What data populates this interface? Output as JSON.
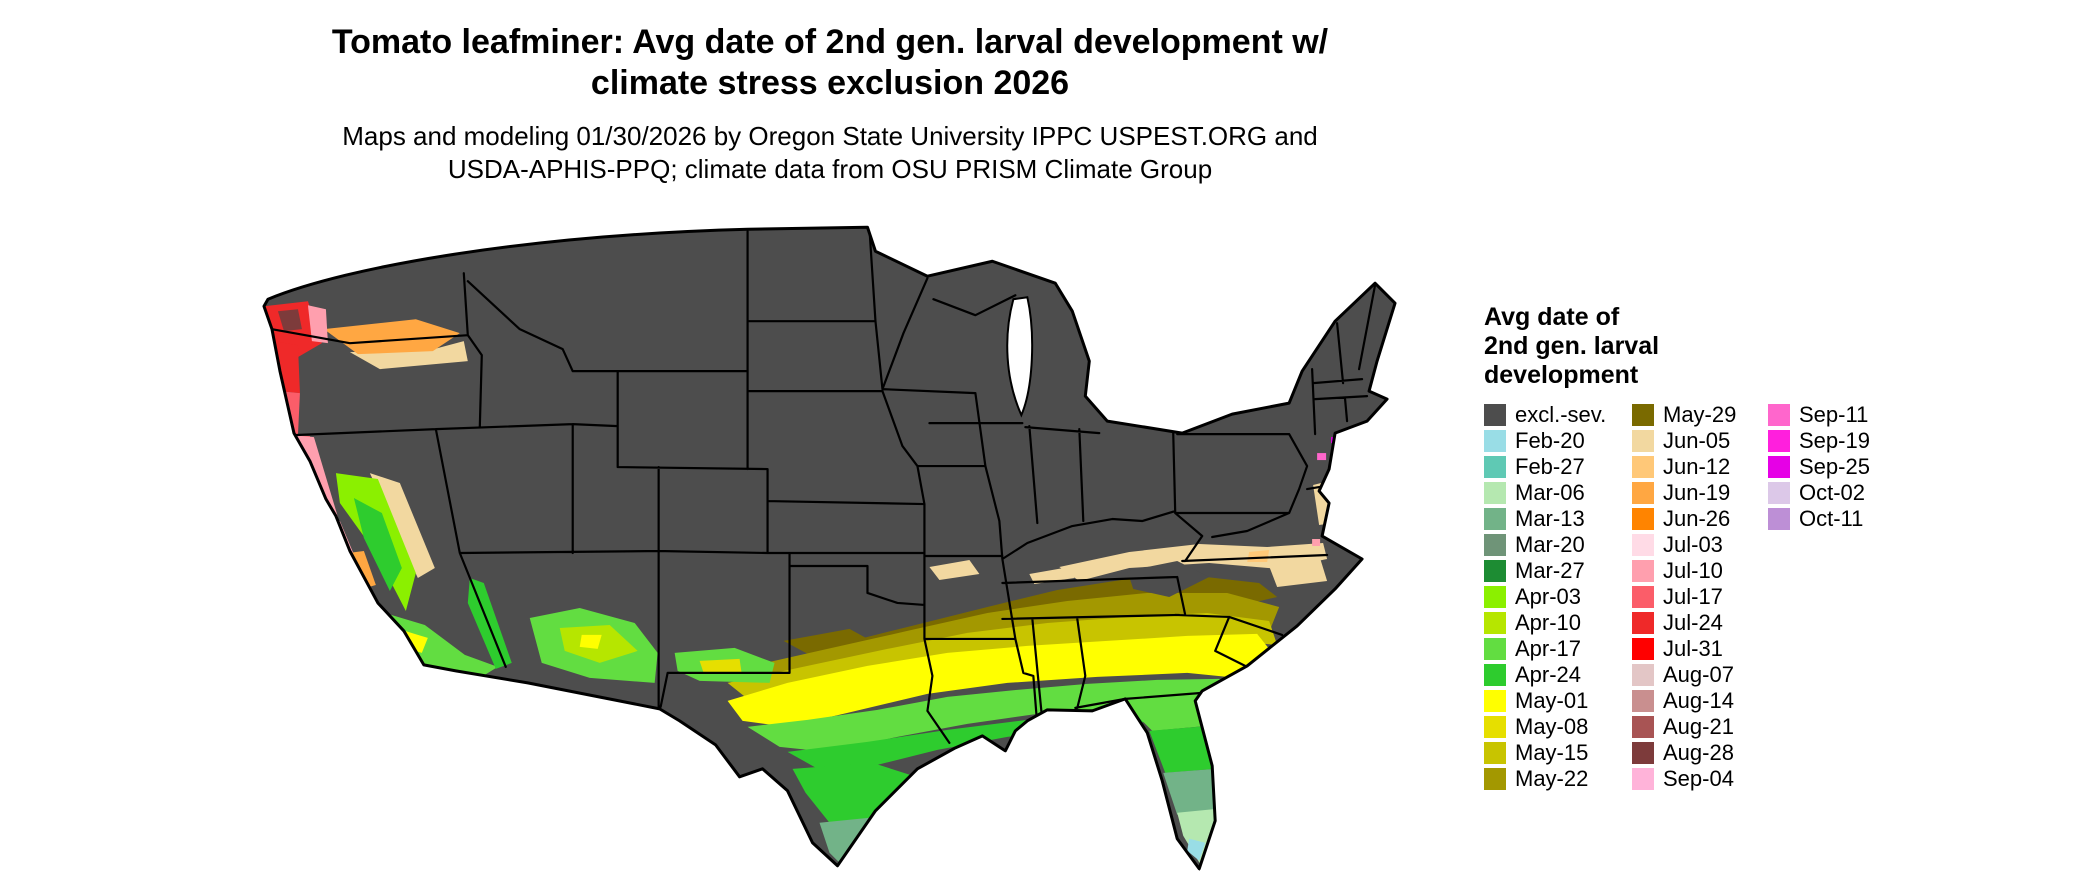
{
  "header": {
    "title_line1": "Tomato leafminer: Avg date of 2nd gen. larval development w/",
    "title_line2": "climate stress exclusion 2026",
    "subtitle_line1": "Maps and modeling 01/30/2026 by Oregon State University IPPC USPEST.ORG and",
    "subtitle_line2": "USDA-APHIS-PPQ; climate data from OSU PRISM Climate Group"
  },
  "legend": {
    "title_lines": [
      "Avg date of",
      "2nd gen. larval",
      "development"
    ],
    "columns": [
      {
        "entries": [
          {
            "label": "excl.-sev.",
            "color": "#4d4d4d"
          },
          {
            "label": "Feb-20",
            "color": "#99dde6"
          },
          {
            "label": "Feb-27",
            "color": "#5fc9b4"
          },
          {
            "label": "Mar-06",
            "color": "#b5e8b0"
          },
          {
            "label": "Mar-13",
            "color": "#72b388"
          },
          {
            "label": "Mar-20",
            "color": "#6f9478"
          },
          {
            "label": "Mar-27",
            "color": "#1d8c33"
          },
          {
            "label": "Apr-03",
            "color": "#8bf000"
          },
          {
            "label": "Apr-10",
            "color": "#b6e600"
          },
          {
            "label": "Apr-17",
            "color": "#62dd41"
          },
          {
            "label": "Apr-24",
            "color": "#2ecc2e"
          },
          {
            "label": "May-01",
            "color": "#ffff00"
          },
          {
            "label": "May-08",
            "color": "#e6df00"
          },
          {
            "label": "May-15",
            "color": "#c8c400"
          },
          {
            "label": "May-22",
            "color": "#a39800"
          }
        ]
      },
      {
        "entries": [
          {
            "label": "May-29",
            "color": "#7a6a00"
          },
          {
            "label": "Jun-05",
            "color": "#f2d8a0"
          },
          {
            "label": "Jun-12",
            "color": "#ffc878"
          },
          {
            "label": "Jun-19",
            "color": "#ffa742"
          },
          {
            "label": "Jun-26",
            "color": "#ff8400"
          },
          {
            "label": "Jul-03",
            "color": "#ffdbe6"
          },
          {
            "label": "Jul-10",
            "color": "#ff9fae"
          },
          {
            "label": "Jul-17",
            "color": "#fb5d69"
          },
          {
            "label": "Jul-24",
            "color": "#ef2929"
          },
          {
            "label": "Jul-31",
            "color": "#ff0000"
          },
          {
            "label": "Aug-07",
            "color": "#e3c6c6"
          },
          {
            "label": "Aug-14",
            "color": "#c98f8f"
          },
          {
            "label": "Aug-21",
            "color": "#a85454"
          },
          {
            "label": "Aug-28",
            "color": "#7d3b3b"
          },
          {
            "label": "Sep-04",
            "color": "#ffb3d9"
          }
        ]
      },
      {
        "entries": [
          {
            "label": "Sep-11",
            "color": "#ff66cc"
          },
          {
            "label": "Sep-19",
            "color": "#ff1fdd"
          },
          {
            "label": "Sep-25",
            "color": "#e600e6"
          },
          {
            "label": "Oct-02",
            "color": "#dcc8e8"
          },
          {
            "label": "Oct-11",
            "color": "#bd8fd6"
          }
        ]
      }
    ]
  },
  "colors": {
    "state_border": "#000000",
    "water": "#ffffff"
  }
}
